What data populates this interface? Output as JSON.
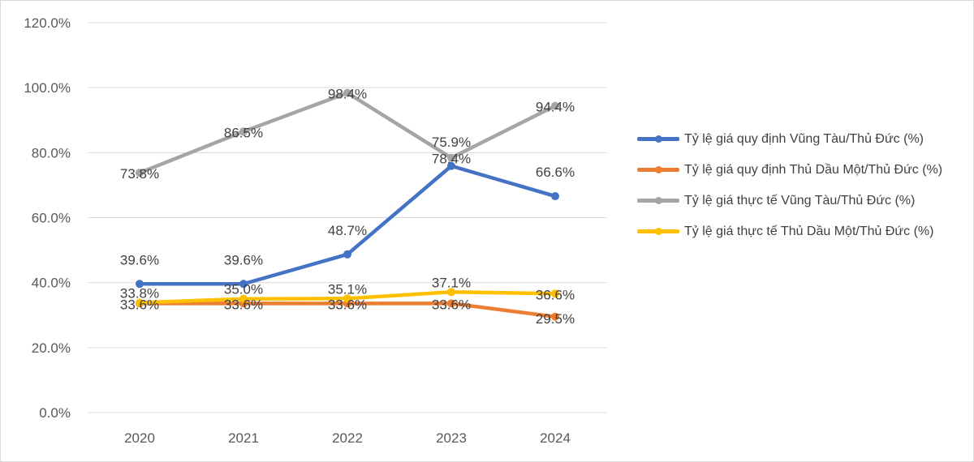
{
  "chart_data": {
    "type": "line",
    "categories": [
      "2020",
      "2021",
      "2022",
      "2023",
      "2024"
    ],
    "ylim": [
      0,
      120
    ],
    "y_ticks": [
      0,
      20,
      40,
      60,
      80,
      100,
      120
    ],
    "y_tick_labels": [
      "0.0%",
      "20.0%",
      "40.0%",
      "60.0%",
      "80.0%",
      "100.0%",
      "120.0%"
    ],
    "grid": true,
    "legend_position": "right",
    "series": [
      {
        "name": "Tỷ lệ giá quy định Vũng Tàu/Thủ Đức (%)",
        "color": "#4472c4",
        "values": [
          39.6,
          39.6,
          48.7,
          75.9,
          66.6
        ],
        "labels": [
          "39.6%",
          "39.6%",
          "48.7%",
          "75.9%",
          "66.6%"
        ]
      },
      {
        "name": "Tỷ lệ giá quy định Thủ Dầu Một/Thủ Đức (%)",
        "color": "#ed7d31",
        "values": [
          33.6,
          33.6,
          33.6,
          33.6,
          29.5
        ],
        "labels": [
          "33.6%",
          "33.6%",
          "33.6%",
          "33.6%",
          "29.5%"
        ]
      },
      {
        "name": "Tỷ lệ giá thực tế Vũng Tàu/Thủ Đức (%)",
        "color": "#a5a5a5",
        "values": [
          73.8,
          86.5,
          98.4,
          78.4,
          94.4
        ],
        "labels": [
          "73.8%",
          "86.5%",
          "98.4%",
          "78.4%",
          "94.4%"
        ]
      },
      {
        "name": "Tỷ lệ giá thực tế Thủ Dầu Một/Thủ Đức (%)",
        "color": "#ffc000",
        "values": [
          33.8,
          35.0,
          35.1,
          37.1,
          36.6
        ],
        "labels": [
          "33.8%",
          "35.0%",
          "35.1%",
          "37.1%",
          "36.6%"
        ]
      }
    ]
  }
}
